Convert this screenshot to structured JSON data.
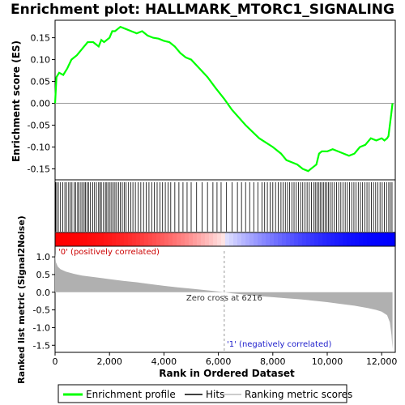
{
  "title": "Enrichment plot: HALLMARK_MTORC1_SIGNALING",
  "colors": {
    "es_line": "#00ff00",
    "hits": "#000000",
    "metric_fill": "#b0b0b0",
    "zero_line": "#999999",
    "pos_text": "#cc0000",
    "neg_text": "#2020cc",
    "bar_pos": "#ff0000",
    "bar_neg": "#0000ff"
  },
  "top_panel": {
    "ylabel": "Enrichment score (ES)",
    "yticks": [
      "0.15",
      "0.10",
      "0.05",
      "0.00",
      "-0.05",
      "-0.10",
      "-0.15"
    ]
  },
  "bottom_panel": {
    "ylabel": "Ranked list metric (Signal2Noise)",
    "yticks": [
      "1.0",
      "0.5",
      "0.0",
      "-0.5",
      "-1.0",
      "-1.5"
    ],
    "xlabel": "Rank in Ordered Dataset",
    "xticks": [
      "0",
      "2,000",
      "4,000",
      "6,000",
      "8,000",
      "10,000",
      "12,000"
    ],
    "pos_label": "'0' (positively correlated)",
    "neg_label": "'1' (negatively correlated)",
    "zero_cross_label": "Zero cross at 6216"
  },
  "legend": {
    "items": [
      "Enrichment profile",
      "Hits",
      "Ranking metric scores"
    ]
  },
  "chart_data": {
    "type": "line",
    "title": "Enrichment plot: HALLMARK_MTORC1_SIGNALING",
    "xlabel": "Rank in Ordered Dataset",
    "ylabel": "Enrichment score (ES)",
    "xlim": [
      0,
      12500
    ],
    "es_ylim": [
      -0.175,
      0.19
    ],
    "metric_ylim": [
      -1.7,
      1.3
    ],
    "zero_cross": 6216,
    "n_genes": 12400,
    "es_profile": {
      "x": [
        0,
        50,
        150,
        300,
        450,
        600,
        800,
        1000,
        1200,
        1400,
        1600,
        1700,
        1800,
        2000,
        2100,
        2200,
        2300,
        2400,
        2600,
        2800,
        3000,
        3200,
        3400,
        3600,
        3800,
        4000,
        4200,
        4400,
        4600,
        4800,
        5000,
        5300,
        5600,
        5900,
        6216,
        6500,
        7000,
        7500,
        8000,
        8300,
        8500,
        8700,
        8900,
        9100,
        9300,
        9400,
        9500,
        9600,
        9700,
        9800,
        10000,
        10200,
        10400,
        10600,
        10800,
        11000,
        11200,
        11400,
        11600,
        11800,
        12000,
        12100,
        12200,
        12250,
        12300,
        12350,
        12400
      ],
      "y": [
        0.0,
        0.06,
        0.07,
        0.065,
        0.08,
        0.1,
        0.11,
        0.125,
        0.14,
        0.14,
        0.13,
        0.145,
        0.14,
        0.15,
        0.165,
        0.165,
        0.17,
        0.175,
        0.17,
        0.165,
        0.16,
        0.165,
        0.155,
        0.15,
        0.148,
        0.143,
        0.14,
        0.13,
        0.115,
        0.105,
        0.1,
        0.08,
        0.06,
        0.035,
        0.01,
        -0.015,
        -0.05,
        -0.08,
        -0.1,
        -0.115,
        -0.13,
        -0.135,
        -0.14,
        -0.15,
        -0.155,
        -0.15,
        -0.145,
        -0.14,
        -0.115,
        -0.11,
        -0.11,
        -0.105,
        -0.11,
        -0.115,
        -0.12,
        -0.115,
        -0.1,
        -0.095,
        -0.08,
        -0.085,
        -0.08,
        -0.085,
        -0.08,
        -0.075,
        -0.05,
        -0.025,
        0.0
      ]
    },
    "hit_ranks": [
      20,
      60,
      120,
      200,
      280,
      360,
      420,
      500,
      560,
      620,
      700,
      760,
      830,
      880,
      950,
      1010,
      1070,
      1120,
      1180,
      1230,
      1300,
      1380,
      1450,
      1520,
      1600,
      1650,
      1700,
      1780,
      1850,
      1900,
      1960,
      2020,
      2080,
      2140,
      2200,
      2260,
      2330,
      2400,
      2470,
      2540,
      2610,
      2700,
      2780,
      2860,
      2950,
      3050,
      3150,
      3250,
      3350,
      3450,
      3550,
      3650,
      3750,
      3850,
      3950,
      4050,
      4150,
      4250,
      4400,
      4550,
      4700,
      4850,
      5000,
      5200,
      5400,
      5600,
      5800,
      5950,
      6100,
      6300,
      6500,
      6700,
      6850,
      7000,
      7150,
      7300,
      7450,
      7600,
      7700,
      7800,
      7900,
      8000,
      8100,
      8200,
      8300,
      8380,
      8460,
      8540,
      8620,
      8700,
      8780,
      8860,
      8940,
      9020,
      9100,
      9180,
      9260,
      9340,
      9420,
      9500,
      9560,
      9620,
      9680,
      9740,
      9800,
      9860,
      9920,
      9980,
      10040,
      10100,
      10180,
      10260,
      10340,
      10420,
      10500,
      10580,
      10660,
      10740,
      10820,
      10900,
      10980,
      11060,
      11140,
      11220,
      11300,
      11380,
      11460,
      11540,
      11620,
      11700,
      11780,
      11860,
      11940,
      12020,
      12100,
      12180,
      12260,
      12320,
      12380
    ],
    "ranked_metric": {
      "x": [
        0,
        30,
        100,
        200,
        400,
        700,
        1000,
        1500,
        2000,
        2500,
        3000,
        3500,
        4000,
        4500,
        5000,
        5500,
        6000,
        6216,
        6500,
        7000,
        7500,
        8000,
        8500,
        9000,
        9500,
        10000,
        10500,
        11000,
        11500,
        11800,
        12000,
        12200,
        12300,
        12360,
        12400
      ],
      "y": [
        1.1,
        0.85,
        0.72,
        0.65,
        0.58,
        0.52,
        0.47,
        0.42,
        0.37,
        0.32,
        0.28,
        0.23,
        0.18,
        0.14,
        0.1,
        0.06,
        0.02,
        0.0,
        -0.03,
        -0.07,
        -0.11,
        -0.14,
        -0.17,
        -0.2,
        -0.24,
        -0.28,
        -0.33,
        -0.38,
        -0.45,
        -0.5,
        -0.55,
        -0.65,
        -0.85,
        -1.2,
        -1.6
      ]
    }
  }
}
